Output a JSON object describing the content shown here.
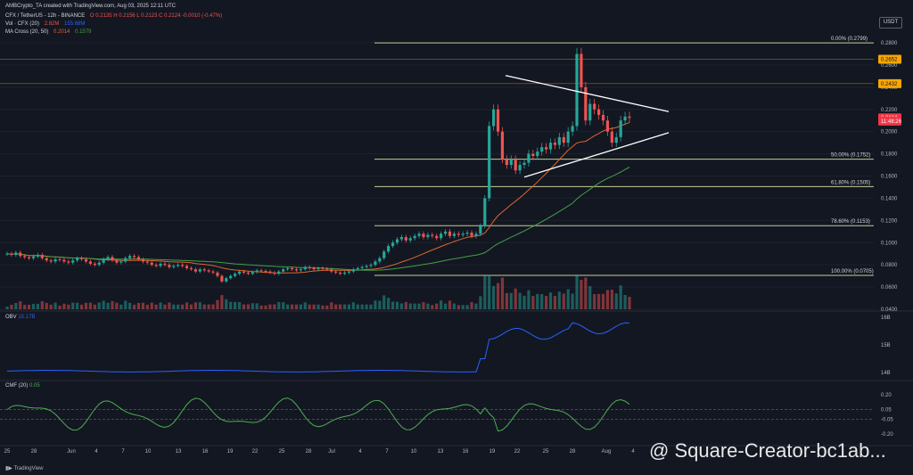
{
  "header": {
    "credit": "AMBCrypto_TA created with TradingView.com, Aug 03, 2025 12:11 UTC",
    "symbol": "CFX / TetherUS - 12h - BINANCE",
    "ohlc": "O 0.2135  H 0.2156  L 0.2123  C 0.2124  -0.0010 (-0.47%)",
    "vol_title": "Vol · CFX (20)",
    "vol_value": "2.82M",
    "vol_ma": "155.68M",
    "ma_title": "MA Cross (20, 50)",
    "ma_fast": "0.2014",
    "ma_slow": "0.1579"
  },
  "currency_badge": "USDT",
  "obv": {
    "title": "OBV",
    "value": "15.17B"
  },
  "cmf": {
    "title": "CMF (20)",
    "value": "0.05"
  },
  "footer": "TradingView",
  "watermark": "@ Square-Creator-bc1ab...",
  "colors": {
    "bg": "#131722",
    "up": "#26a69a",
    "down": "#ef5350",
    "fib": "#c9cb93",
    "obv": "#2962ff",
    "cmf": "#4caf50",
    "ma_fast": "#e0662c",
    "ma_slow": "#43a047"
  },
  "chart_data": {
    "type": "candlestick",
    "timeframe": "12h",
    "price_axis": [
      "0.2800",
      "0.2600",
      "0.2400",
      "0.2200",
      "0.2000",
      "0.1800",
      "0.1600",
      "0.1400",
      "0.1200",
      "0.1000",
      "0.0800",
      "0.0600",
      "0.0400"
    ],
    "price_tags": [
      {
        "label": "0.2652",
        "value": 0.2652,
        "color": "#f7a600"
      },
      {
        "label": "0.2432",
        "value": 0.2432,
        "color": "#f7a600"
      },
      {
        "label": "0.2124",
        "value": 0.2124,
        "color": "#f23645"
      },
      {
        "label": "11:48:26",
        "value": 0.2095,
        "color": "#f23645"
      }
    ],
    "fib_levels": [
      {
        "label": "0.00% (0.2799)",
        "value": 0.2799
      },
      {
        "label": "50.00% (0.1752)",
        "value": 0.1752
      },
      {
        "label": "61.80% (0.1505)",
        "value": 0.1505
      },
      {
        "label": "78.60% (0.1153)",
        "value": 0.1153
      },
      {
        "label": "100.00% (0.0705)",
        "value": 0.0705
      }
    ],
    "x_ticks": [
      "25",
      "28",
      "Jun",
      "4",
      "7",
      "10",
      "13",
      "16",
      "19",
      "22",
      "25",
      "28",
      "Jul",
      "4",
      "7",
      "10",
      "13",
      "16",
      "19",
      "22",
      "25",
      "28",
      "Aug",
      "4"
    ],
    "triangle": {
      "upper": [
        [
          0.2505,
          "Jul 20"
        ],
        [
          0.218,
          "Aug 4"
        ]
      ],
      "lower": [
        [
          0.159,
          "Jul 21"
        ],
        [
          0.199,
          "Aug 4"
        ]
      ]
    },
    "obv_axis": [
      "16B",
      "15B",
      "14B"
    ],
    "cmf_axis": [
      "0.20",
      "0.05",
      "-0.05",
      "-0.20"
    ],
    "closes": [
      0.09,
      0.089,
      0.091,
      0.088,
      0.087,
      0.086,
      0.0875,
      0.089,
      0.086,
      0.084,
      0.083,
      0.085,
      0.0845,
      0.083,
      0.082,
      0.084,
      0.086,
      0.085,
      0.083,
      0.081,
      0.08,
      0.082,
      0.085,
      0.087,
      0.084,
      0.082,
      0.083,
      0.086,
      0.088,
      0.087,
      0.085,
      0.083,
      0.082,
      0.08,
      0.079,
      0.081,
      0.08,
      0.078,
      0.079,
      0.08,
      0.079,
      0.077,
      0.076,
      0.074,
      0.076,
      0.075,
      0.074,
      0.073,
      0.07,
      0.065,
      0.068,
      0.07,
      0.072,
      0.074,
      0.073,
      0.072,
      0.0735,
      0.075,
      0.0745,
      0.074,
      0.073,
      0.072,
      0.074,
      0.076,
      0.077,
      0.076,
      0.075,
      0.076,
      0.078,
      0.077,
      0.076,
      0.077,
      0.0765,
      0.076,
      0.074,
      0.073,
      0.072,
      0.073,
      0.074,
      0.076,
      0.077,
      0.078,
      0.079,
      0.08,
      0.083,
      0.086,
      0.092,
      0.097,
      0.1,
      0.103,
      0.105,
      0.102,
      0.104,
      0.106,
      0.108,
      0.105,
      0.107,
      0.106,
      0.104,
      0.108,
      0.11,
      0.106,
      0.108,
      0.107,
      0.108,
      0.109,
      0.106,
      0.108,
      0.115,
      0.14,
      0.205,
      0.22,
      0.2,
      0.175,
      0.17,
      0.175,
      0.165,
      0.17,
      0.172,
      0.18,
      0.178,
      0.182,
      0.186,
      0.184,
      0.19,
      0.188,
      0.195,
      0.19,
      0.2,
      0.205,
      0.27,
      0.24,
      0.21,
      0.225,
      0.22,
      0.215,
      0.21,
      0.2,
      0.19,
      0.195,
      0.21,
      0.2135,
      0.2124
    ]
  }
}
